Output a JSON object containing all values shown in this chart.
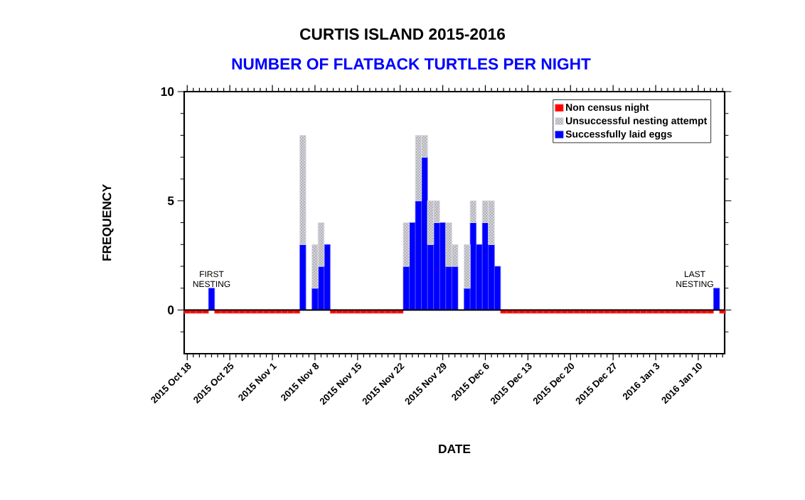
{
  "chart_data": {
    "type": "bar",
    "title": "CURTIS ISLAND 2015-2016",
    "subtitle": "NUMBER OF FLATBACK TURTLES PER NIGHT",
    "xlabel": "DATE",
    "ylabel": "FREQUENCY",
    "stacked": true,
    "legend": "top right",
    "xlim": [
      "2015-10-17T12:00",
      "2016-01-14T08:00"
    ],
    "ylim": [
      -2,
      10
    ],
    "xticks": [
      {
        "value": "2015-10-18",
        "label": "2015 Oct 18"
      },
      {
        "value": "2015-10-25",
        "label": "2015 Oct 25"
      },
      {
        "value": "2015-11-01",
        "label": "2015 Nov 1"
      },
      {
        "value": "2015-11-08",
        "label": "2015 Nov 8"
      },
      {
        "value": "2015-11-15",
        "label": "2015 Nov 15"
      },
      {
        "value": "2015-11-22",
        "label": "2015 Nov 22"
      },
      {
        "value": "2015-11-29",
        "label": "2015 Nov 29"
      },
      {
        "value": "2015-12-06",
        "label": "2015 Dec 6"
      },
      {
        "value": "2015-12-13",
        "label": "2015 Dec 13"
      },
      {
        "value": "2015-12-20",
        "label": "2015 Dec 20"
      },
      {
        "value": "2015-12-27",
        "label": "2015 Dec 27"
      },
      {
        "value": "2016-01-03",
        "label": "2016 Jan 3"
      },
      {
        "value": "2016-01-10",
        "label": "2016 Jan 10"
      },
      {
        "value": "2015-10-19",
        "label": null
      },
      {
        "value": "2015-10-20",
        "label": null
      },
      {
        "value": "2015-10-21",
        "label": null
      },
      {
        "value": "2015-10-22",
        "label": null
      },
      {
        "value": "2015-10-23",
        "label": null
      },
      {
        "value": "2015-10-24",
        "label": null
      },
      {
        "value": "2015-10-26",
        "label": null
      },
      {
        "value": "2015-10-27",
        "label": null
      },
      {
        "value": "2015-10-28",
        "label": null
      },
      {
        "value": "2015-10-29",
        "label": null
      },
      {
        "value": "2015-10-30",
        "label": null
      },
      {
        "value": "2015-10-31",
        "label": null
      },
      {
        "value": "2015-11-02",
        "label": null
      },
      {
        "value": "2015-11-03",
        "label": null
      },
      {
        "value": "2015-11-04",
        "label": null
      },
      {
        "value": "2015-11-05",
        "label": null
      },
      {
        "value": "2015-11-06",
        "label": null
      },
      {
        "value": "2015-11-07",
        "label": null
      },
      {
        "value": "2015-11-09",
        "label": null
      },
      {
        "value": "2015-11-10",
        "label": null
      },
      {
        "value": "2015-11-11",
        "label": null
      },
      {
        "value": "2015-11-12",
        "label": null
      },
      {
        "value": "2015-11-13",
        "label": null
      },
      {
        "value": "2015-11-14",
        "label": null
      },
      {
        "value": "2015-11-16",
        "label": null
      },
      {
        "value": "2015-11-17",
        "label": null
      },
      {
        "value": "2015-11-18",
        "label": null
      },
      {
        "value": "2015-11-19",
        "label": null
      },
      {
        "value": "2015-11-20",
        "label": null
      },
      {
        "value": "2015-11-21",
        "label": null
      },
      {
        "value": "2015-11-23",
        "label": null
      },
      {
        "value": "2015-11-24",
        "label": null
      },
      {
        "value": "2015-11-25",
        "label": null
      },
      {
        "value": "2015-11-26",
        "label": null
      },
      {
        "value": "2015-11-27",
        "label": null
      },
      {
        "value": "2015-11-28",
        "label": null
      },
      {
        "value": "2015-11-30",
        "label": null
      },
      {
        "value": "2015-12-01",
        "label": null
      },
      {
        "value": "2015-12-02",
        "label": null
      },
      {
        "value": "2015-12-03",
        "label": null
      },
      {
        "value": "2015-12-04",
        "label": null
      },
      {
        "value": "2015-12-05",
        "label": null
      },
      {
        "value": "2015-12-07",
        "label": null
      },
      {
        "value": "2015-12-08",
        "label": null
      },
      {
        "value": "2015-12-09",
        "label": null
      },
      {
        "value": "2015-12-10",
        "label": null
      },
      {
        "value": "2015-12-11",
        "label": null
      },
      {
        "value": "2015-12-12",
        "label": null
      },
      {
        "value": "2015-12-14",
        "label": null
      },
      {
        "value": "2015-12-15",
        "label": null
      },
      {
        "value": "2015-12-16",
        "label": null
      },
      {
        "value": "2015-12-17",
        "label": null
      },
      {
        "value": "2015-12-18",
        "label": null
      },
      {
        "value": "2015-12-19",
        "label": null
      },
      {
        "value": "2015-12-21",
        "label": null
      },
      {
        "value": "2015-12-22",
        "label": null
      },
      {
        "value": "2015-12-23",
        "label": null
      },
      {
        "value": "2015-12-24",
        "label": null
      },
      {
        "value": "2015-12-25",
        "label": null
      },
      {
        "value": "2015-12-26",
        "label": null
      },
      {
        "value": "2015-12-28",
        "label": null
      },
      {
        "value": "2015-12-29",
        "label": null
      },
      {
        "value": "2015-12-30",
        "label": null
      },
      {
        "value": "2015-12-31",
        "label": null
      },
      {
        "value": "2016-01-01",
        "label": null
      },
      {
        "value": "2016-01-02",
        "label": null
      },
      {
        "value": "2016-01-04",
        "label": null
      },
      {
        "value": "2016-01-05",
        "label": null
      },
      {
        "value": "2016-01-06",
        "label": null
      },
      {
        "value": "2016-01-07",
        "label": null
      },
      {
        "value": "2016-01-08",
        "label": null
      },
      {
        "value": "2016-01-09",
        "label": null
      },
      {
        "value": "2016-01-11",
        "label": null
      },
      {
        "value": "2016-01-12",
        "label": null
      },
      {
        "value": "2016-01-13",
        "label": null
      },
      {
        "value": "2016-01-14",
        "label": null
      }
    ],
    "yticks": [
      0,
      5,
      10,
      {
        "value": -1,
        "label": null
      },
      {
        "value": 1,
        "label": null
      },
      {
        "value": 2,
        "label": null
      },
      {
        "value": 3,
        "label": null
      },
      {
        "value": 4,
        "label": null
      },
      {
        "value": 6,
        "label": null
      },
      {
        "value": 7,
        "label": null
      },
      {
        "value": 8,
        "label": null
      },
      {
        "value": 9,
        "label": null
      }
    ],
    "ref_lines": [
      {
        "axis": "y",
        "value": 0,
        "color": "#000000"
      }
    ],
    "annotations": [
      {
        "text": "FIRST NESTING",
        "x": "2015-10-22",
        "y": 1
      },
      {
        "text": "LAST NESTING",
        "x": "2016-01-13",
        "y": 1
      }
    ],
    "series": [
      {
        "name": "Successfully laid eggs",
        "color": "#0000ff",
        "x": [
          "2015-10-22",
          "2015-11-06",
          "2015-11-08",
          "2015-11-09",
          "2015-11-10",
          "2015-11-23",
          "2015-11-24",
          "2015-11-25",
          "2015-11-26",
          "2015-11-27",
          "2015-11-28",
          "2015-11-29",
          "2015-11-30",
          "2015-12-01",
          "2015-12-03",
          "2015-12-04",
          "2015-12-05",
          "2015-12-06",
          "2015-12-07",
          "2015-12-08",
          "2016-01-13"
        ],
        "values": [
          1,
          3,
          1,
          2,
          3,
          2,
          4,
          5,
          7,
          3,
          4,
          4,
          2,
          2,
          1,
          4,
          3,
          4,
          3,
          2,
          1
        ]
      },
      {
        "name": "Unsuccessful nesting attempt",
        "color": "#d4d4dc",
        "x": [
          "2015-10-22",
          "2015-11-06",
          "2015-11-08",
          "2015-11-09",
          "2015-11-10",
          "2015-11-23",
          "2015-11-24",
          "2015-11-25",
          "2015-11-26",
          "2015-11-27",
          "2015-11-28",
          "2015-11-29",
          "2015-11-30",
          "2015-12-01",
          "2015-12-03",
          "2015-12-04",
          "2015-12-05",
          "2015-12-06",
          "2015-12-07",
          "2015-12-08",
          "2016-01-13"
        ],
        "values": [
          0,
          5,
          2,
          2,
          0,
          2,
          0,
          3,
          1,
          2,
          1,
          0,
          2,
          1,
          2,
          1,
          0,
          1,
          2,
          0,
          0
        ]
      },
      {
        "name": "Non census night",
        "color": "#ff0000",
        "x": [
          "2015-10-18",
          "2015-10-19",
          "2015-10-20",
          "2015-10-21",
          "2015-10-23",
          "2015-10-24",
          "2015-10-25",
          "2015-10-26",
          "2015-10-27",
          "2015-10-28",
          "2015-10-29",
          "2015-10-30",
          "2015-10-31",
          "2015-11-01",
          "2015-11-02",
          "2015-11-03",
          "2015-11-04",
          "2015-11-05",
          "2015-11-11",
          "2015-11-12",
          "2015-11-13",
          "2015-11-14",
          "2015-11-15",
          "2015-11-16",
          "2015-11-17",
          "2015-11-18",
          "2015-11-19",
          "2015-11-20",
          "2015-11-21",
          "2015-11-22",
          "2015-12-09",
          "2015-12-10",
          "2015-12-11",
          "2015-12-12",
          "2015-12-13",
          "2015-12-14",
          "2015-12-15",
          "2015-12-16",
          "2015-12-17",
          "2015-12-18",
          "2015-12-19",
          "2015-12-20",
          "2015-12-21",
          "2015-12-22",
          "2015-12-23",
          "2015-12-24",
          "2015-12-25",
          "2015-12-26",
          "2015-12-27",
          "2015-12-28",
          "2015-12-29",
          "2015-12-30",
          "2015-12-31",
          "2016-01-01",
          "2016-01-02",
          "2016-01-03",
          "2016-01-04",
          "2016-01-05",
          "2016-01-06",
          "2016-01-07",
          "2016-01-08",
          "2016-01-09",
          "2016-01-10",
          "2016-01-11",
          "2016-01-12",
          "2016-01-14"
        ],
        "values": [
          -0.15,
          -0.15,
          -0.15,
          -0.15,
          -0.15,
          -0.15,
          -0.15,
          -0.15,
          -0.15,
          -0.15,
          -0.15,
          -0.15,
          -0.15,
          -0.15,
          -0.15,
          -0.15,
          -0.15,
          -0.15,
          -0.15,
          -0.15,
          -0.15,
          -0.15,
          -0.15,
          -0.15,
          -0.15,
          -0.15,
          -0.15,
          -0.15,
          -0.15,
          -0.15,
          -0.15,
          -0.15,
          -0.15,
          -0.15,
          -0.15,
          -0.15,
          -0.15,
          -0.15,
          -0.15,
          -0.15,
          -0.15,
          -0.15,
          -0.15,
          -0.15,
          -0.15,
          -0.15,
          -0.15,
          -0.15,
          -0.15,
          -0.15,
          -0.15,
          -0.15,
          -0.15,
          -0.15,
          -0.15,
          -0.15,
          -0.15,
          -0.15,
          -0.15,
          -0.15,
          -0.15,
          -0.15,
          -0.15,
          -0.15,
          -0.15,
          -0.15
        ]
      }
    ]
  }
}
